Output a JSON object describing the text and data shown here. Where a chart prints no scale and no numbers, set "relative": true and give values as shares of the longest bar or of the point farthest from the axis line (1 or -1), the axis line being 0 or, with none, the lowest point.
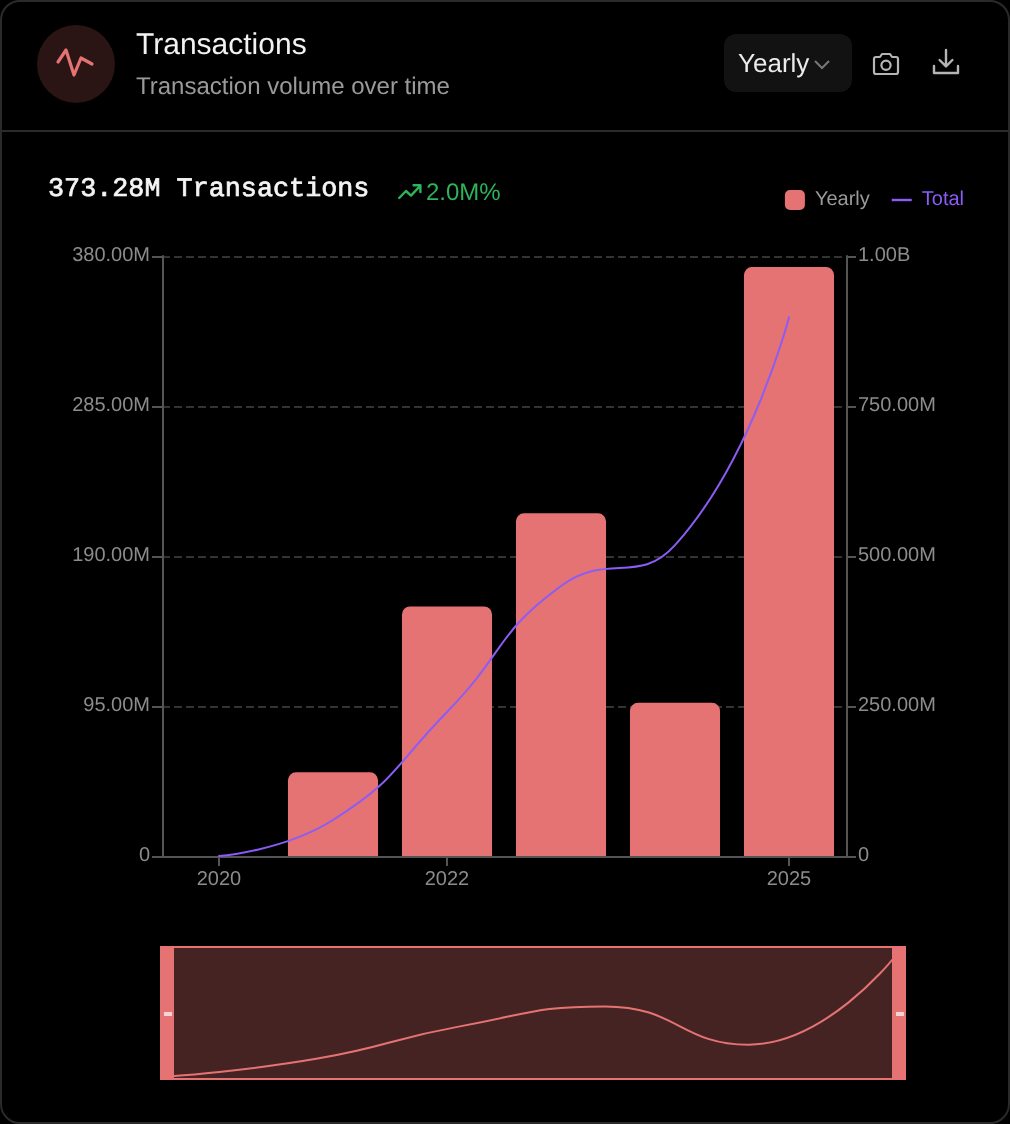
{
  "chart_data": [
    {
      "type": "bar",
      "title": "Transactions",
      "subtitle": "Transaction volume over time",
      "annotations": [
        "Yearly",
        "373.28M Transactions",
        "2.0M%"
      ],
      "categories": [
        "2020",
        null,
        "2022",
        null,
        null,
        "2025"
      ],
      "series": [
        {
          "name": "Yearly",
          "color": "#e57373",
          "values": [
            0,
            53000000,
            158000000,
            217000000,
            97000000,
            373000000
          ]
        },
        {
          "name": "Total",
          "type": "line",
          "axis": "y2",
          "color": "#8b5cf6",
          "values": [
            0,
            60000000,
            240000000,
            450000000,
            518000000,
            898000000
          ]
        }
      ],
      "ylim": [
        0,
        380000000
      ],
      "yticks": [
        0,
        {
          "value": 95000000,
          "label": "95.00M"
        },
        {
          "value": 190000000,
          "label": "190.00M"
        },
        {
          "value": 285000000,
          "label": "285.00M"
        },
        {
          "value": 380000000,
          "label": "380.00M"
        }
      ],
      "y2lim": [
        0,
        1000000000
      ],
      "y2ticks": [
        0,
        {
          "value": 250000000,
          "label": "250.00M"
        },
        {
          "value": 500000000,
          "label": "500.00M"
        },
        {
          "value": 750000000,
          "label": "750.00M"
        },
        {
          "value": 1000000000,
          "label": "1.00B"
        }
      ],
      "grid": "y",
      "legend": "top right"
    },
    {
      "type": "line",
      "relative": true,
      "categories": [
        null,
        null,
        null,
        null,
        null,
        null
      ],
      "values": [
        0,
        0.15,
        0.43,
        0.6,
        0.27,
        1
      ],
      "color": "#e57373",
      "tick_labels": false
    }
  ]
}
